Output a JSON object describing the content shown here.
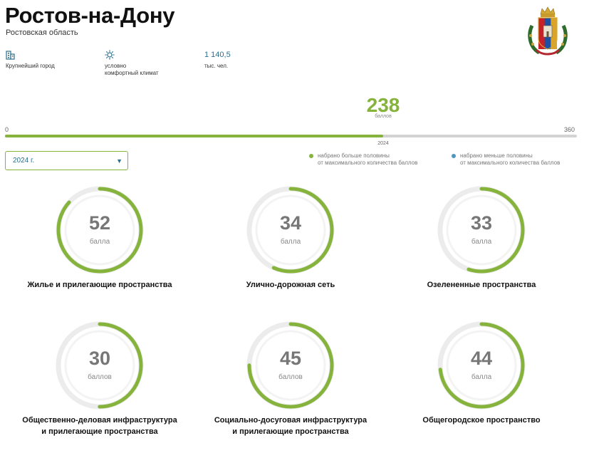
{
  "city": {
    "name": "Ростов-на-Дону",
    "region": "Ростовская область"
  },
  "facts": [
    {
      "icon": "building-icon",
      "text": "Крупнейший город"
    },
    {
      "icon": "sun-icon",
      "line1": "условно",
      "line2": "комфортный климат"
    },
    {
      "value": "1 140,5",
      "unit": "тыс. чел."
    }
  ],
  "total": {
    "score": "238",
    "unit": "баллов",
    "min": "0",
    "max": "360",
    "year_marker": "2024",
    "score_value": 238,
    "max_value": 360
  },
  "year_select": {
    "value": "2024 г.",
    "caret": "▼"
  },
  "legend": [
    {
      "line1": "набрано больше половины",
      "line2": "от максимального количества баллов",
      "color": "#86b33c"
    },
    {
      "line1": "набрано меньше половины",
      "line2": "от максимального количества баллов",
      "color": "#4e97c2"
    }
  ],
  "colors": {
    "accent": "#86b33c",
    "blue": "#4e97c2",
    "track": "#ececec"
  },
  "categories": [
    {
      "value": "52",
      "unit": "балла",
      "label1": "Жилье и прилегающие пространства",
      "label2": "",
      "score": 52,
      "max": 60
    },
    {
      "value": "34",
      "unit": "балла",
      "label1": "Улично-дорожная сеть",
      "label2": "",
      "score": 34,
      "max": 60
    },
    {
      "value": "33",
      "unit": "балла",
      "label1": "Озелененные пространства",
      "label2": "",
      "score": 33,
      "max": 60
    },
    {
      "value": "30",
      "unit": "баллов",
      "label1": "Общественно-деловая инфраструктура",
      "label2": "и прилегающие пространства",
      "score": 30,
      "max": 60
    },
    {
      "value": "45",
      "unit": "баллов",
      "label1": "Социально-досуговая инфраструктура",
      "label2": "и прилегающие пространства",
      "score": 45,
      "max": 60
    },
    {
      "value": "44",
      "unit": "балла",
      "label1": "Общегородское пространство",
      "label2": "",
      "score": 44,
      "max": 60
    }
  ]
}
